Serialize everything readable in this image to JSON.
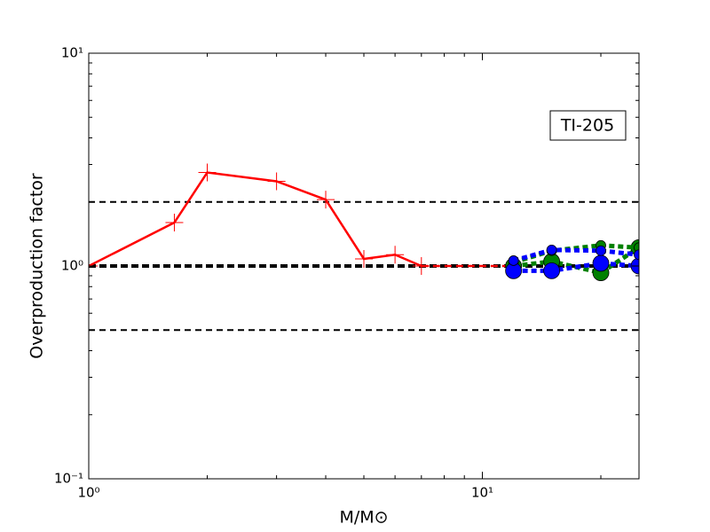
{
  "chart_data": {
    "type": "line",
    "xlabel": "M/M⊙",
    "ylabel": "Overproduction factor",
    "annotation": "TI-205",
    "xscale": "log",
    "yscale": "log",
    "xlim": [
      1,
      25
    ],
    "ylim": [
      0.1,
      10
    ],
    "xticks": [
      {
        "value": 1,
        "label": "10⁰"
      },
      {
        "value": 10,
        "label": "10¹"
      }
    ],
    "yticks": [
      {
        "value": 0.1,
        "label": "10⁻¹"
      },
      {
        "value": 1,
        "label": "10⁰"
      },
      {
        "value": 10,
        "label": "10¹"
      }
    ],
    "xminorticks": [
      2,
      3,
      4,
      5,
      6,
      7,
      8,
      9,
      20
    ],
    "yminorticks": [
      0.2,
      0.3,
      0.4,
      0.5,
      0.6,
      0.7,
      0.8,
      0.9,
      2,
      3,
      4,
      5,
      6,
      7,
      8,
      9
    ],
    "hlines": [
      {
        "y": 2,
        "style": "dashed"
      },
      {
        "y": 1,
        "style": "thick-dashed"
      },
      {
        "y": 0.5,
        "style": "dashed"
      }
    ],
    "series": [
      {
        "color": "#ff0000",
        "linestyle": "solid",
        "marker": "plus",
        "x": [
          1,
          1.65,
          2,
          3,
          4,
          5,
          6,
          7
        ],
        "values": [
          1.0,
          1.6,
          2.75,
          2.5,
          2.05,
          1.08,
          1.13,
          1.0
        ]
      },
      {
        "color": "#ff0000",
        "linestyle": "dashed",
        "marker": "none",
        "x": [
          7,
          12
        ],
        "values": [
          1.0,
          1.0
        ]
      },
      {
        "color": "#008000",
        "linestyle": "dotted",
        "marker": "circle-large",
        "x": [
          12,
          15,
          20,
          25
        ],
        "values": [
          1.0,
          1.05,
          0.93,
          1.22
        ]
      },
      {
        "color": "#008000",
        "linestyle": "dotted",
        "marker": "circle-small",
        "x": [
          12,
          15,
          20,
          25
        ],
        "values": [
          1.04,
          1.18,
          1.25,
          1.22
        ]
      },
      {
        "color": "#0000ff",
        "linestyle": "dotted",
        "marker": "circle-large",
        "x": [
          12,
          15,
          20,
          25
        ],
        "values": [
          0.95,
          0.95,
          1.03,
          1.0
        ]
      },
      {
        "color": "#0000ff",
        "linestyle": "dotted",
        "marker": "circle-small",
        "x": [
          12,
          15,
          20,
          25
        ],
        "values": [
          1.06,
          1.19,
          1.18,
          1.13
        ]
      }
    ]
  }
}
